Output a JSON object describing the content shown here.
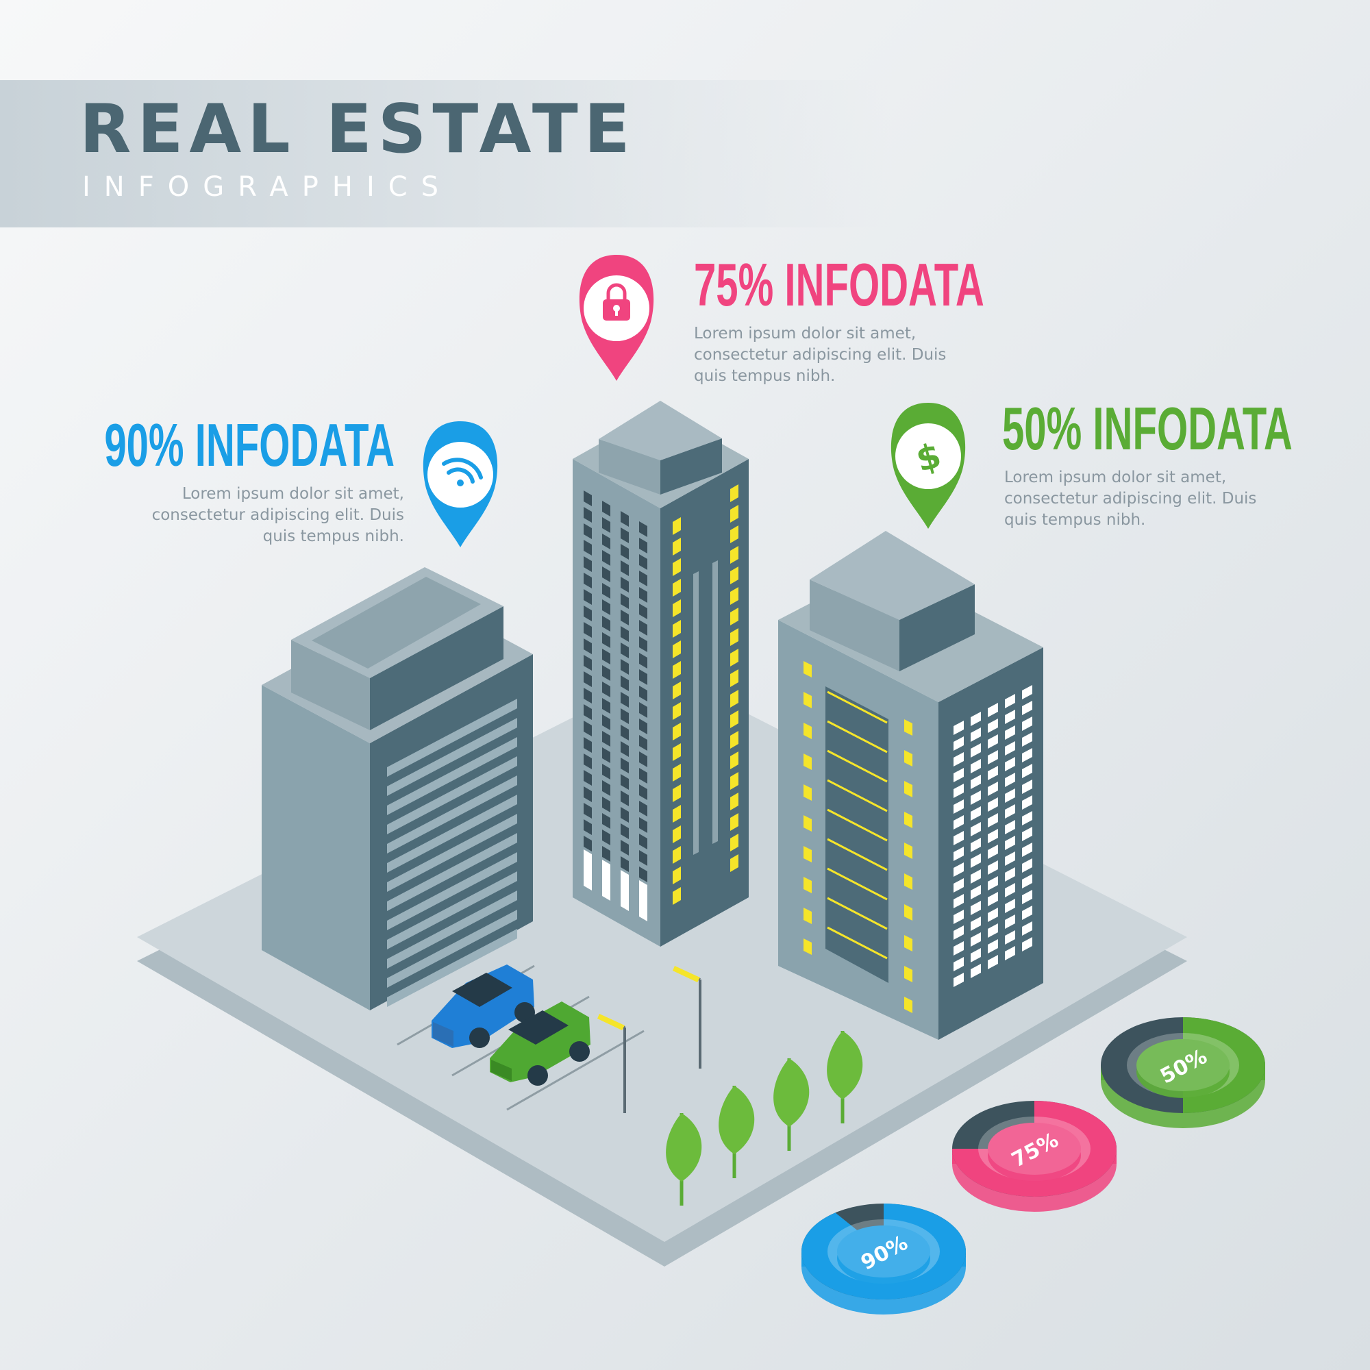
{
  "header": {
    "title": "REAL ESTATE",
    "subtitle": "INFOGRAPHICS"
  },
  "info_blocks": [
    {
      "title": "75% INFODATA",
      "text": "Lorem ipsum dolor sit amet,\nconsectetur adipiscing elit. Duis\nquis tempus nibh.",
      "color": "#f0447f",
      "icon": "lock-icon"
    },
    {
      "title": "90% INFODATA",
      "text": "Lorem ipsum dolor sit amet,\nconsectetur adipiscing elit. Duis\nquis tempus nibh.",
      "color": "#1a9ee6",
      "icon": "signal-icon"
    },
    {
      "title": "50% INFODATA",
      "text": "Lorem ipsum dolor sit amet,\nconsectetur adipiscing elit. Duis\nquis tempus nibh.",
      "color": "#5aac35",
      "icon": "dollar-icon"
    }
  ],
  "rings": [
    {
      "label": "90%",
      "value": 0.9,
      "color": "#1a9ee6"
    },
    {
      "label": "75%",
      "value": 0.75,
      "color": "#f0447f"
    },
    {
      "label": "50%",
      "value": 0.5,
      "color": "#5aac35"
    }
  ]
}
